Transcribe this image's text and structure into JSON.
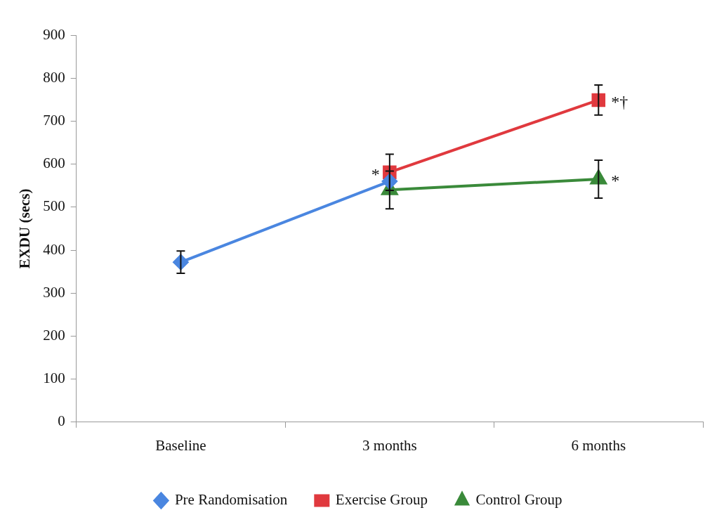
{
  "chart_data": {
    "type": "line",
    "ylabel": "EXDU (secs)",
    "categories": [
      "Baseline",
      "3 months",
      "6 months"
    ],
    "series": [
      {
        "name": "Pre Randomisation",
        "color": "#4a86e0",
        "marker": "diamond",
        "values": [
          372,
          560,
          null
        ],
        "errors": [
          26,
          null,
          null
        ]
      },
      {
        "name": "Exercise Group",
        "color": "#e0393e",
        "marker": "square",
        "values": [
          null,
          581,
          749
        ],
        "errors": [
          null,
          42,
          35
        ]
      },
      {
        "name": "Control Group",
        "color": "#3a8a3a",
        "marker": "triangle",
        "values": [
          null,
          540,
          565
        ],
        "errors": [
          null,
          44,
          44
        ]
      }
    ],
    "ylim": [
      0,
      900
    ],
    "yticks": [
      0,
      100,
      200,
      300,
      400,
      500,
      600,
      700,
      800,
      900
    ],
    "grid": false,
    "legend": "bottom",
    "annotations": [
      {
        "text": "*",
        "x": "3 months",
        "y": 581
      },
      {
        "text": "*†",
        "x": "6 months",
        "y": 749
      },
      {
        "text": "*",
        "x": "6 months",
        "y": 565
      }
    ]
  }
}
